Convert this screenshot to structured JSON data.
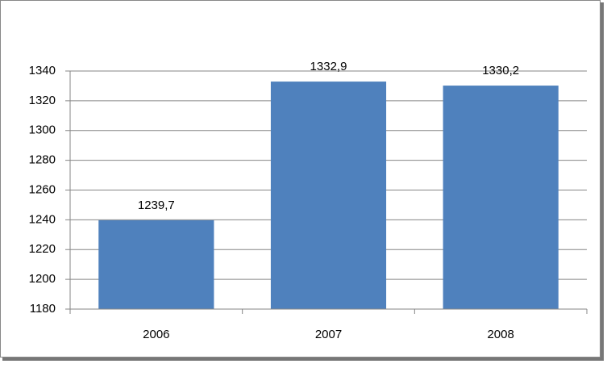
{
  "chart_data": {
    "type": "bar",
    "categories": [
      "2006",
      "2007",
      "2008"
    ],
    "values": [
      1239.7,
      1332.9,
      1330.2
    ],
    "value_labels": [
      "1239,7",
      "1332,9",
      "1330,2"
    ],
    "color": "#4f81bd",
    "ylim": [
      1180,
      1340
    ],
    "yticks": [
      1180,
      1200,
      1220,
      1240,
      1260,
      1280,
      1300,
      1320,
      1340
    ],
    "grid": true
  }
}
